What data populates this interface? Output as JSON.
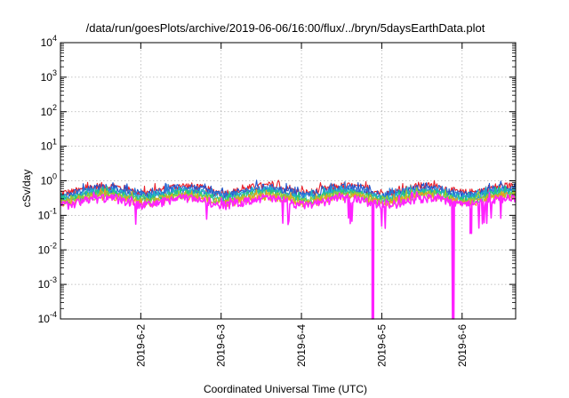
{
  "chart_data": {
    "type": "line",
    "title": "/data/run/goesPlots/archive/2019-06-06/16:00/flux/../bryn/5daysEarthData.plot",
    "xlabel": "Coordinated Universal Time (UTC)",
    "ylabel": "cSv/day",
    "y_scale": "log",
    "ylim": [
      0.0001,
      10000
    ],
    "xlim_days": [
      "2019-06-01 00:00",
      "2019-06-06 16:00"
    ],
    "grid": true,
    "legend": "none",
    "x_ticks": [
      {
        "label": "2019-6-2",
        "day": 1
      },
      {
        "label": "2019-6-3",
        "day": 2
      },
      {
        "label": "2019-6-4",
        "day": 3
      },
      {
        "label": "2019-6-5",
        "day": 4
      },
      {
        "label": "2019-6-6",
        "day": 5
      }
    ],
    "y_ticks": [
      {
        "base": "10",
        "exp": "-4",
        "value": 0.0001
      },
      {
        "base": "10",
        "exp": "-3",
        "value": 0.001
      },
      {
        "base": "10",
        "exp": "-2",
        "value": 0.01
      },
      {
        "base": "10",
        "exp": "-1",
        "value": 0.1
      },
      {
        "base": "10",
        "exp": "0",
        "value": 1
      },
      {
        "base": "10",
        "exp": "1",
        "value": 10
      },
      {
        "base": "10",
        "exp": "2",
        "value": 100
      },
      {
        "base": "10",
        "exp": "3",
        "value": 1000
      },
      {
        "base": "10",
        "exp": "4",
        "value": 10000
      }
    ],
    "series": [
      {
        "color": "#e8202a",
        "level": 0.58
      },
      {
        "color": "#2255cc",
        "level": 0.52
      },
      {
        "color": "#2a7ad8",
        "level": 0.46
      },
      {
        "color": "#20b8c8",
        "level": 0.41
      },
      {
        "color": "#28c878",
        "level": 0.37
      },
      {
        "color": "#a0c830",
        "level": 0.33
      },
      {
        "color": "#e8a020",
        "level": 0.3
      },
      {
        "color": "#ff22ff",
        "level": 0.26
      }
    ],
    "dips": [
      {
        "day": 3.88,
        "value": 0.0001
      },
      {
        "day": 4.88,
        "value": 0.0001
      },
      {
        "day": 5.1,
        "value": 0.03
      }
    ]
  }
}
